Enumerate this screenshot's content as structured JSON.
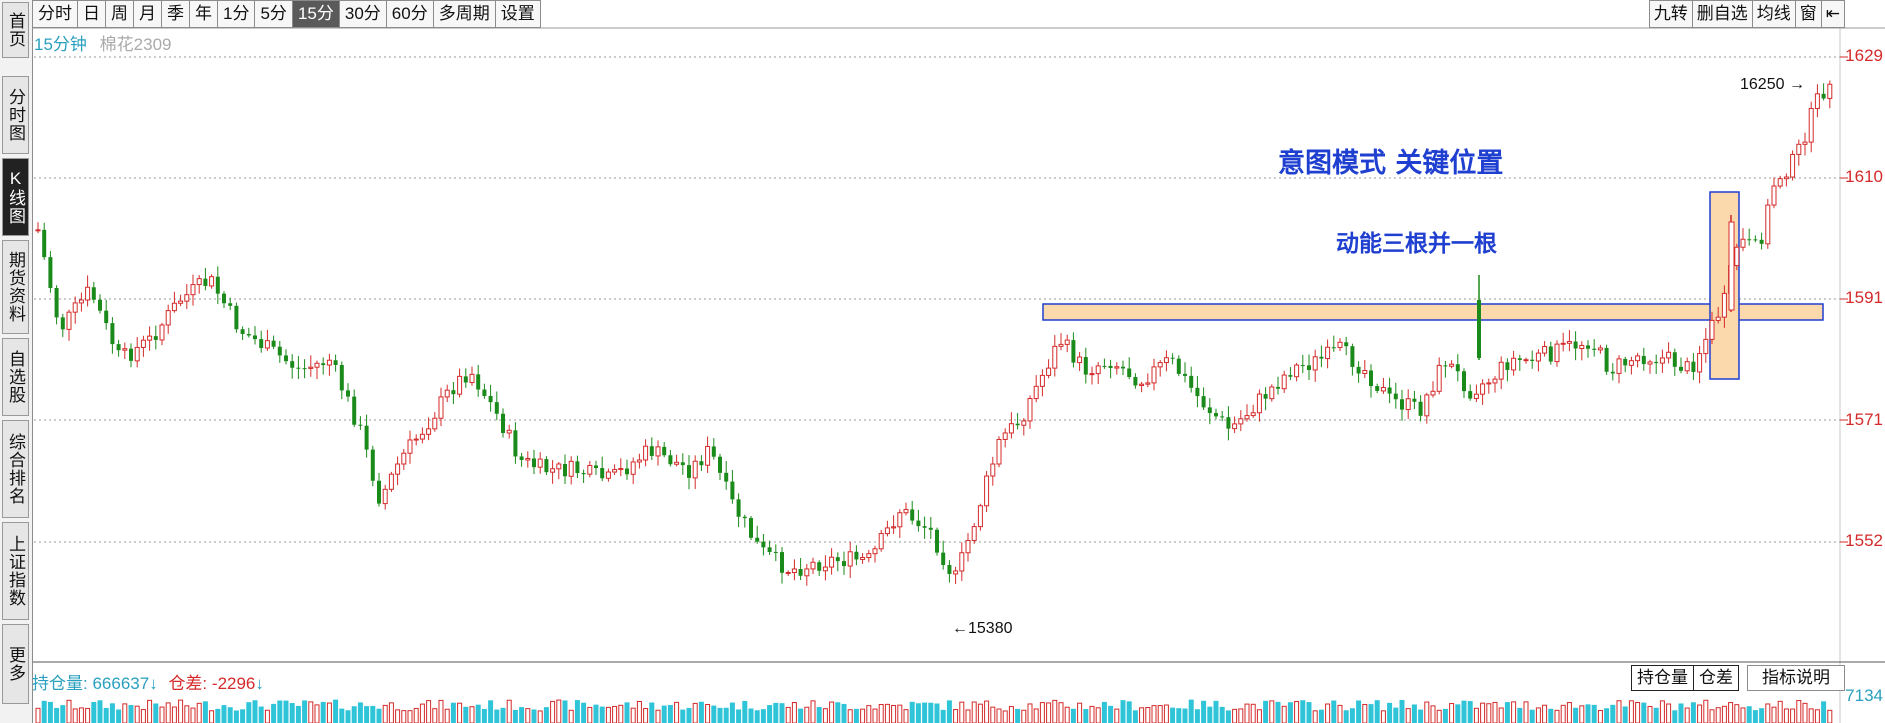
{
  "left_nav": [
    {
      "label": "首页",
      "active": false
    },
    {
      "label": "分时图",
      "active": false
    },
    {
      "label": "K线图",
      "active": true
    },
    {
      "label": "期货资料",
      "active": false
    },
    {
      "label": "自选股",
      "active": false
    },
    {
      "label": "综合排名",
      "active": false
    },
    {
      "label": "上证指数",
      "active": false
    },
    {
      "label": "更多",
      "active": false
    }
  ],
  "toolbar": {
    "periods": [
      "分时",
      "日",
      "周",
      "月",
      "季",
      "年",
      "1分",
      "5分",
      "15分",
      "30分",
      "60分",
      "多周期",
      "设置"
    ],
    "active_period": "15分",
    "right_buttons": [
      "九转",
      "删自选",
      "均线",
      "窗"
    ]
  },
  "header": {
    "period_label": "15分钟",
    "symbol": "棉花2309"
  },
  "annotations": {
    "pattern_title": "意图模式  关键位置",
    "pattern_note": "动能三根并一根"
  },
  "indicator": {
    "oi_label": "持仓量:",
    "oi_value": "666637",
    "diff_label": "仓差:",
    "diff_value": "-2296",
    "tabs": [
      "持仓量",
      "仓差",
      "指标说明"
    ],
    "axis_label": "7134"
  },
  "chart_data": {
    "type": "candlestick",
    "title": "棉花2309",
    "y_axis_labels": [
      "1629",
      "1610",
      "1591",
      "1571",
      "1552"
    ],
    "high_marker": "16250",
    "low_marker": "15380",
    "colors": {
      "up": "#d42a2a",
      "down": "#1a8a1a",
      "box": "#1f3fd0",
      "box_fill": "#fbd9ad"
    }
  }
}
